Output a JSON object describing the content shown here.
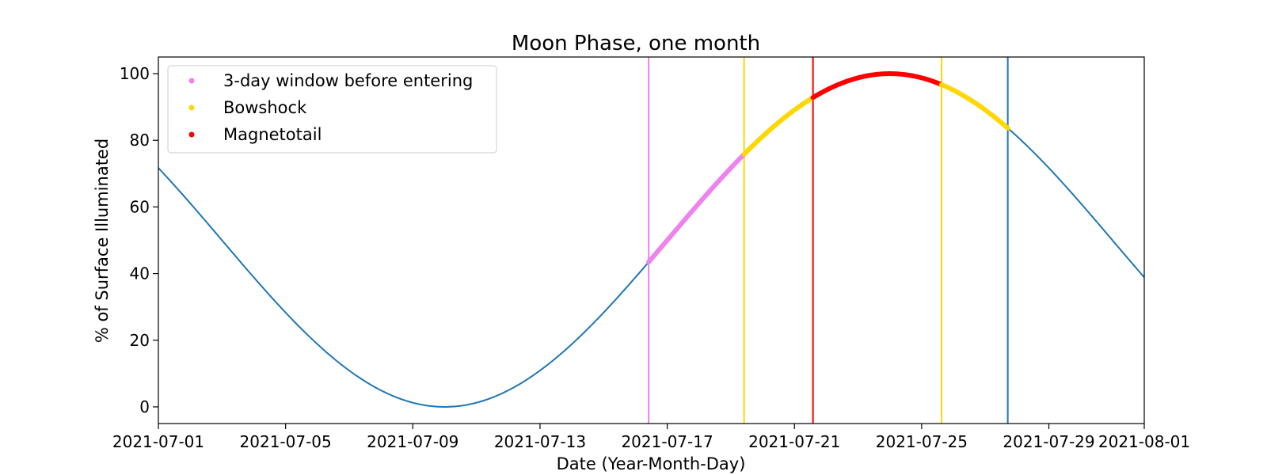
{
  "chart_data": {
    "type": "line",
    "title": "Moon Phase, one month",
    "xlabel": "Date (Year-Month-Day)",
    "ylabel": "% of Surface Illuminated",
    "xlim": [
      "2021-07-01",
      "2021-08-01"
    ],
    "ylim": [
      -5,
      105
    ],
    "x_ticks": [
      "2021-07-01",
      "2021-07-05",
      "2021-07-09",
      "2021-07-13",
      "2021-07-17",
      "2021-07-21",
      "2021-07-25",
      "2021-07-29",
      "2021-08-01"
    ],
    "y_ticks": [
      0,
      20,
      40,
      60,
      80,
      100
    ],
    "grid": false,
    "legend_position": "top-left",
    "line_color": "#1f77b4",
    "phase_curve": {
      "new_moon": "2021-07-10",
      "full_moon": "2021-07-24",
      "min": 0,
      "max": 100
    },
    "series": [
      {
        "name": "3-day window before entering",
        "color": "#ee82ee",
        "start": "2021-07-16 10:00",
        "end": "2021-07-19 10:00"
      },
      {
        "name": "Bowshock",
        "color": "#ffd700",
        "start": "2021-07-19 10:00",
        "end": "2021-07-21 14:00"
      },
      {
        "name": "Magnetotail",
        "color": "#ff0000",
        "start": "2021-07-21 14:00",
        "end": "2021-07-25 15:00"
      },
      {
        "name": "",
        "color": "#ffd700",
        "start": "2021-07-25 15:00",
        "end": "2021-07-27 17:00"
      }
    ],
    "vlines": [
      {
        "x": "2021-07-16 10:00",
        "color": "#ee82ee"
      },
      {
        "x": "2021-07-19 10:00",
        "color": "#ffd700"
      },
      {
        "x": "2021-07-21 14:00",
        "color": "#ff0000"
      },
      {
        "x": "2021-07-25 15:00",
        "color": "#ffd700"
      },
      {
        "x": "2021-07-27 17:00",
        "color": "#1f77b4"
      }
    ]
  }
}
